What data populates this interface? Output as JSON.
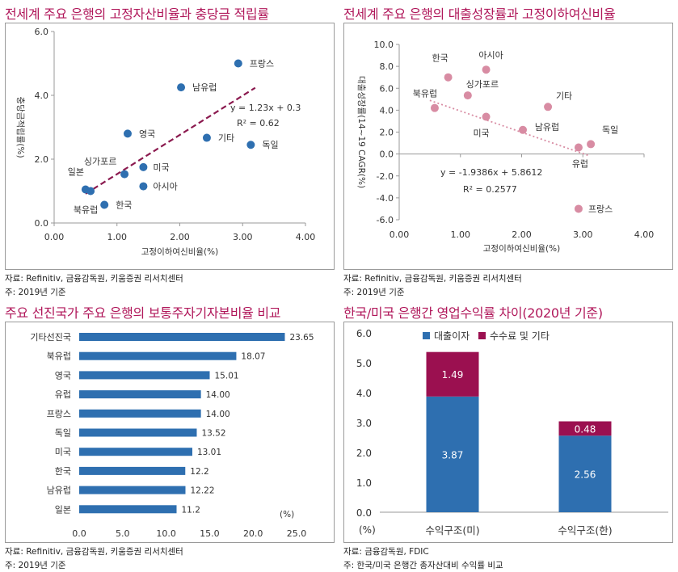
{
  "charts": [
    {
      "title": "전세계 주요 은행의 고정자산비율과 충당금 적립률",
      "source": "자료: Refinitiv, 금융감독원, 키움증권 리서치센터",
      "note": "주: 2019년 기준",
      "chart_data": {
        "type": "scatter",
        "xlabel": "고정이하여신비율(%)",
        "ylabel": "충당금적립률(%)",
        "xlim": [
          0,
          4
        ],
        "ylim": [
          0,
          6
        ],
        "xticks": [
          "0.00",
          "1.00",
          "2.00",
          "3.00",
          "4.00"
        ],
        "yticks": [
          "0.0",
          "2.0",
          "4.0",
          "6.0"
        ],
        "color": "#2e6fb0",
        "trend_color": "#8b1a4f",
        "points": [
          {
            "label": "프랑스",
            "x": 2.93,
            "y": 5.0
          },
          {
            "label": "남유럽",
            "x": 2.02,
            "y": 4.25
          },
          {
            "label": "영국",
            "x": 1.17,
            "y": 2.8
          },
          {
            "label": "기타",
            "x": 2.43,
            "y": 2.67
          },
          {
            "label": "독일",
            "x": 3.13,
            "y": 2.45
          },
          {
            "label": "싱가포르",
            "x": 1.12,
            "y": 1.53
          },
          {
            "label": "미국",
            "x": 1.42,
            "y": 1.75
          },
          {
            "label": "아시아",
            "x": 1.42,
            "y": 1.15
          },
          {
            "label": "일본",
            "x": 0.5,
            "y": 1.05
          },
          {
            "label": "북유럽",
            "x": 0.58,
            "y": 1.0
          },
          {
            "label": "한국",
            "x": 0.8,
            "y": 0.57
          }
        ],
        "trendline": {
          "slope": 1.23,
          "intercept": 0.3,
          "x_range": [
            0.5,
            3.2
          ]
        },
        "equation": "y = 1.23x + 0.3",
        "r2": "R²   = 0.62"
      }
    },
    {
      "title": "전세계 주요 은행의 대출성장률과 고정이하여신비율",
      "source": "자료: Refinitiv, 금융감독원, 키움증권 리서치센터",
      "note": "주: 2019년 기준",
      "chart_data": {
        "type": "scatter",
        "xlabel": "고정이하여신비율(%)",
        "ylabel": "대출성장률(14~19 CAGR(%)",
        "xlim": [
          0,
          4
        ],
        "ylim": [
          -6,
          10
        ],
        "xticks": [
          "0.00",
          "1.00",
          "2.00",
          "3.00",
          "4.00"
        ],
        "yticks": [
          "-6.0",
          "-4.0",
          "-2.0",
          "0.0",
          "2.0",
          "4.0",
          "6.0",
          "8.0",
          "10.0"
        ],
        "color": "#d88ca3",
        "trend_color": "#d88ca3",
        "points": [
          {
            "label": "한국",
            "x": 0.8,
            "y": 7.0
          },
          {
            "label": "아시아",
            "x": 1.42,
            "y": 7.7
          },
          {
            "label": "싱가포르",
            "x": 1.12,
            "y": 5.35
          },
          {
            "label": "북유럽",
            "x": 0.58,
            "y": 4.2
          },
          {
            "label": "미국",
            "x": 1.42,
            "y": 3.4
          },
          {
            "label": "기타",
            "x": 2.43,
            "y": 4.3
          },
          {
            "label": "남유럽",
            "x": 2.02,
            "y": 2.2
          },
          {
            "label": "독일",
            "x": 3.13,
            "y": 0.9
          },
          {
            "label": "유럽",
            "x": 2.93,
            "y": 0.6
          },
          {
            "label": "프랑스",
            "x": 2.93,
            "y": -5.0
          }
        ],
        "trendline": {
          "slope": -1.9386,
          "intercept": 5.8612,
          "x_range": [
            0.5,
            3.1
          ]
        },
        "equation": "y = -1.9386x + 5.8612",
        "r2": "R² = 0.2577"
      }
    },
    {
      "title": "주요 선진국가 주요 은행의 보통주자기자본비율 비교",
      "source": "자료: Refinitiv, 금융감독원, 키움증권 리서치센터",
      "note": "주: 2019년 기준",
      "chart_data": {
        "type": "bar",
        "orientation": "horizontal",
        "categories": [
          "기타선진국",
          "북유럽",
          "영국",
          "유럽",
          "프랑스",
          "독일",
          "미국",
          "한국",
          "남유럽",
          "일본"
        ],
        "values": [
          23.65,
          18.07,
          15.01,
          14.0,
          14.0,
          13.52,
          13.01,
          12.2,
          12.22,
          11.2
        ],
        "value_labels": [
          "23.65",
          "18.07",
          "15.01",
          "14.00",
          "14.00",
          "13.52",
          "13.01",
          "12.2",
          "12.22",
          "11.2"
        ],
        "xlim": [
          0,
          25
        ],
        "xticks": [
          "0.0",
          "5.0",
          "10.0",
          "15.0",
          "20.0",
          "25.0"
        ],
        "unit": "(%)",
        "color": "#2e6fb0"
      }
    },
    {
      "title": "한국/미국 은행간 영업수익률 차이(2020년 기준)",
      "source": "자료: 금융감독원, FDIC",
      "note": "주: 한국/미국 은행간 총자산대비 수익률 비교",
      "chart_data": {
        "type": "bar",
        "stacked": true,
        "categories": [
          "수익구조(미)",
          "수익구조(한)"
        ],
        "series": [
          {
            "name": "대출이자",
            "values": [
              3.87,
              2.56
            ],
            "labels": [
              "3.87",
              "2.56"
            ],
            "color": "#2e6fb0"
          },
          {
            "name": "수수료 및 기타",
            "values": [
              1.49,
              0.48
            ],
            "labels": [
              "1.49",
              "0.48"
            ],
            "color": "#9b1050"
          }
        ],
        "ylim": [
          0,
          6
        ],
        "yticks": [
          "0.0",
          "1.0",
          "2.0",
          "3.0",
          "4.0",
          "5.0",
          "6.0"
        ],
        "unit": "(%)",
        "legend": "top"
      }
    }
  ]
}
